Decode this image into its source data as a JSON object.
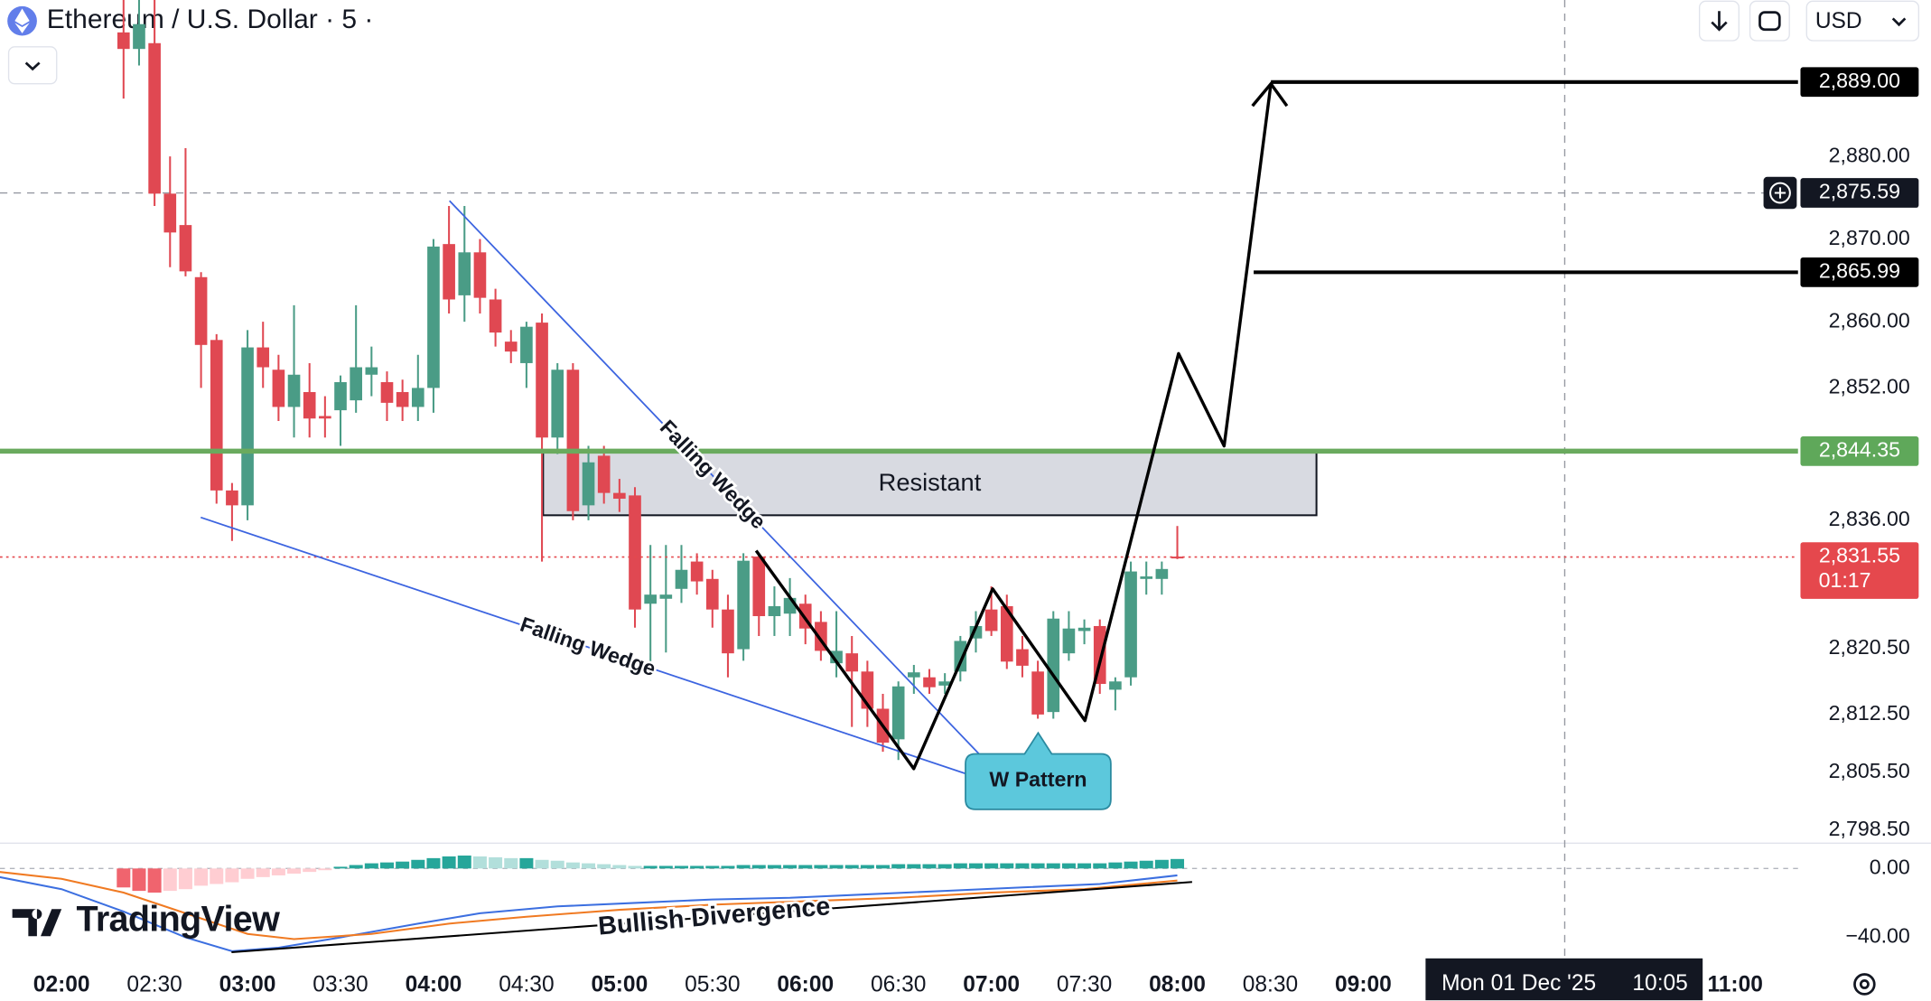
{
  "chart_data": {
    "type": "candlestick",
    "title": "Ethereum / U.S. Dollar · 5 ·",
    "currency": "USD",
    "up_color": "#4a9c86",
    "down_color": "#e04852",
    "x": [
      "02:20",
      "02:25",
      "02:30",
      "02:35",
      "02:40",
      "02:45",
      "02:50",
      "02:55",
      "03:00",
      "03:05",
      "03:10",
      "03:15",
      "03:20",
      "03:25",
      "03:30",
      "03:35",
      "03:40",
      "03:45",
      "03:50",
      "03:55",
      "04:00",
      "04:05",
      "04:10",
      "04:15",
      "04:20",
      "04:25",
      "04:30",
      "04:35",
      "04:40",
      "04:45",
      "04:50",
      "04:55",
      "05:00",
      "05:05",
      "05:10",
      "05:15",
      "05:20",
      "05:25",
      "05:30",
      "05:35",
      "05:40",
      "05:45",
      "05:50",
      "05:55",
      "06:00",
      "06:05",
      "06:10",
      "06:15",
      "06:20",
      "06:25",
      "06:30",
      "06:35",
      "06:40",
      "06:45",
      "06:50",
      "06:55",
      "07:00",
      "07:05",
      "07:10",
      "07:15",
      "07:20",
      "07:25",
      "07:30",
      "07:35",
      "07:40",
      "07:45",
      "07:50",
      "07:55",
      "08:00"
    ],
    "ohlc": [
      [
        2895,
        2902,
        2887,
        2893
      ],
      [
        2893,
        2901,
        2891,
        2896
      ],
      [
        2893.7,
        2899,
        2874,
        2875.5
      ],
      [
        2875.5,
        2880,
        2866.6,
        2870.8
      ],
      [
        2871.7,
        2881,
        2865.5,
        2866.1
      ],
      [
        2865.4,
        2866,
        2852,
        2857.2
      ],
      [
        2857.8,
        2858.5,
        2838,
        2839.6
      ],
      [
        2839.6,
        2840.5,
        2833.5,
        2837.8
      ],
      [
        2837.8,
        2859,
        2836,
        2856.9
      ],
      [
        2856.9,
        2860,
        2852,
        2854.5
      ],
      [
        2854.2,
        2856,
        2848,
        2849.7
      ],
      [
        2849.7,
        2862,
        2846,
        2853.6
      ],
      [
        2851.5,
        2855,
        2846,
        2848.3
      ],
      [
        2848.6,
        2851,
        2846,
        2848.3
      ],
      [
        2849.3,
        2853.5,
        2845,
        2852.7
      ],
      [
        2850.5,
        2862,
        2849,
        2854.5
      ],
      [
        2853.6,
        2857,
        2851,
        2854.5
      ],
      [
        2852.7,
        2854,
        2848,
        2850.2
      ],
      [
        2851.5,
        2853,
        2848,
        2849.7
      ],
      [
        2849.7,
        2856,
        2848,
        2852
      ],
      [
        2852,
        2870,
        2849,
        2869.1
      ],
      [
        2869.4,
        2874,
        2861,
        2862.7
      ],
      [
        2863.2,
        2874,
        2860,
        2868.4
      ],
      [
        2868.4,
        2870,
        2861,
        2862.9
      ],
      [
        2862.7,
        2864,
        2857,
        2858.7
      ],
      [
        2857.6,
        2859,
        2855,
        2856.4
      ],
      [
        2855,
        2860,
        2852,
        2859.4
      ],
      [
        2859.9,
        2861,
        2831,
        2846
      ],
      [
        2846,
        2855,
        2844,
        2854.2
      ],
      [
        2854.2,
        2855,
        2836,
        2837.1
      ],
      [
        2837.8,
        2845,
        2836,
        2843
      ],
      [
        2843.8,
        2845,
        2838,
        2839.3
      ],
      [
        2839.3,
        2841,
        2837,
        2838.6
      ],
      [
        2839,
        2840,
        2823,
        2825.2
      ],
      [
        2825.9,
        2833,
        2818,
        2827
      ],
      [
        2826.5,
        2833,
        2820,
        2827
      ],
      [
        2827.7,
        2833,
        2826,
        2830
      ],
      [
        2831,
        2832,
        2827,
        2828.6
      ],
      [
        2828.9,
        2830,
        2823,
        2825.2
      ],
      [
        2825.2,
        2827,
        2817,
        2819.9
      ],
      [
        2820.4,
        2832,
        2819,
        2831.1
      ],
      [
        2831.6,
        2832,
        2822,
        2824.4
      ],
      [
        2824.4,
        2828,
        2822,
        2825.6
      ],
      [
        2824.7,
        2829,
        2822,
        2826.6
      ],
      [
        2825.9,
        2827,
        2821,
        2822.9
      ],
      [
        2823.7,
        2825,
        2819,
        2820.2
      ],
      [
        2818.7,
        2825,
        2817,
        2820.2
      ],
      [
        2819.9,
        2822,
        2811,
        2817.7
      ],
      [
        2817.7,
        2819,
        2811,
        2813.2
      ],
      [
        2813.2,
        2815,
        2808,
        2809.1
      ],
      [
        2809.5,
        2816.5,
        2807,
        2815.9
      ],
      [
        2817,
        2818.5,
        2815,
        2817.6
      ],
      [
        2817,
        2818,
        2815,
        2815.8
      ],
      [
        2816,
        2817.5,
        2815,
        2816.5
      ],
      [
        2817.7,
        2822,
        2816.5,
        2821.4
      ],
      [
        2821.7,
        2825,
        2820,
        2823.2
      ],
      [
        2825.2,
        2828,
        2822,
        2822.6
      ],
      [
        2825.6,
        2827,
        2818,
        2818.9
      ],
      [
        2820.4,
        2822,
        2817,
        2818.4
      ],
      [
        2817.7,
        2819,
        2812,
        2812.5
      ],
      [
        2812.8,
        2825,
        2812,
        2824.1
      ],
      [
        2819.9,
        2825,
        2819,
        2822.9
      ],
      [
        2822.6,
        2824,
        2821,
        2823
      ],
      [
        2823.2,
        2824,
        2815,
        2816.2
      ],
      [
        2815.5,
        2817,
        2813,
        2816.5
      ],
      [
        2817,
        2831,
        2816,
        2829.8
      ],
      [
        2828.9,
        2831,
        2827,
        2829.2
      ],
      [
        2828.9,
        2831,
        2827,
        2830.1
      ],
      [
        2831.6,
        2835.3,
        2831.3,
        2831.55
      ]
    ],
    "ylim": [
      2797.01,
      2898.92
    ],
    "yticks": [
      {
        "value": 2880,
        "label": "2,880.00"
      },
      {
        "value": 2870,
        "label": "2,870.00"
      },
      {
        "value": 2860,
        "label": "2,860.00"
      },
      {
        "value": 2852,
        "label": "2,852.00"
      },
      {
        "value": 2836,
        "label": "2,836.00"
      },
      {
        "value": 2820.5,
        "label": "2,820.50"
      },
      {
        "value": 2812.5,
        "label": "2,812.50"
      },
      {
        "value": 2805.5,
        "label": "2,805.50"
      },
      {
        "value": 2798.5,
        "label": "2,798.50"
      }
    ],
    "xticks": [
      "02:00",
      "02:30",
      "03:00",
      "03:30",
      "04:00",
      "04:30",
      "05:00",
      "05:30",
      "06:00",
      "06:30",
      "07:00",
      "07:30",
      "08:00",
      "08:30",
      "09:00",
      "11:00"
    ],
    "price_labels": [
      {
        "value": 2889,
        "label": "2,889.00",
        "color": "#000000"
      },
      {
        "value": 2865.99,
        "label": "2,865.99",
        "color": "#000000"
      },
      {
        "value": 2844.35,
        "label": "2,844.35",
        "color": "#5fa85a"
      },
      {
        "value": 2831.55,
        "label": "2,831.55",
        "color": "#e5484d",
        "countdown": "01:17"
      }
    ],
    "crosshair": {
      "price": {
        "value": 2875.59,
        "label": "2,875.59"
      },
      "date": "Mon 01 Dec '25",
      "time": "10:05"
    },
    "resistance": {
      "label": "Resistant",
      "top": 2844.2,
      "bottom": 2836.6
    },
    "annotations": {
      "wedge_upper": "Falling Wedge",
      "wedge_lower": "Falling Wedge",
      "pattern": "W Pattern",
      "divergence": "Bullish Divergence"
    },
    "brand": "TradingView",
    "macd": {
      "ylim": [
        -57.9,
        13.6
      ],
      "yticks": [
        {
          "value": 0,
          "label": "0.00"
        },
        {
          "value": -40,
          "label": "−40.00"
        }
      ],
      "colors": {
        "pos_up": "#26a69a",
        "pos_down": "#b2dfdb",
        "neg_down": "#f0646e",
        "neg_up": "#ffcdd2"
      },
      "histogram": [
        -11,
        -13,
        -14,
        -13,
        -12,
        -10,
        -9,
        -8,
        -6,
        -5,
        -4,
        -3,
        -2,
        -1,
        1,
        2,
        3,
        3.5,
        4,
        5,
        6,
        7,
        7.5,
        7,
        6.5,
        6,
        6,
        5,
        4.5,
        3.5,
        3,
        2.5,
        2,
        1.5,
        1.5,
        1.5,
        1.5,
        1.5,
        1.5,
        1.5,
        2,
        2,
        2,
        2,
        2,
        2,
        2,
        2,
        2,
        2,
        2.5,
        2.5,
        2.5,
        2.5,
        3,
        3,
        3,
        3,
        3,
        3,
        3,
        3,
        3,
        3,
        3.5,
        4,
        4.5,
        5,
        5.5
      ],
      "lines": [
        {
          "color": "#3c6fe0",
          "x": [
            "01:40",
            "02:00",
            "02:20",
            "02:40",
            "02:55",
            "03:10",
            "03:30",
            "03:55",
            "04:15",
            "04:40",
            "05:05",
            "05:30",
            "05:55",
            "06:20",
            "06:45",
            "07:10",
            "07:35",
            "08:00"
          ],
          "values": [
            -5,
            -12,
            -25,
            -40,
            -48,
            -46,
            -40,
            -32,
            -26,
            -22,
            -20,
            -18,
            -17,
            -15,
            -13,
            -11,
            -9,
            -4
          ]
        },
        {
          "color": "#f07a22",
          "x": [
            "01:40",
            "02:00",
            "02:20",
            "02:40",
            "03:00",
            "03:15",
            "03:40",
            "04:05",
            "04:30",
            "05:00",
            "05:30",
            "06:00",
            "06:30",
            "07:00",
            "07:30",
            "08:00"
          ],
          "values": [
            -2,
            -6,
            -14,
            -26,
            -38,
            -41,
            -38,
            -32,
            -28,
            -24,
            -21,
            -19,
            -17,
            -14,
            -12,
            -7
          ]
        }
      ]
    }
  }
}
